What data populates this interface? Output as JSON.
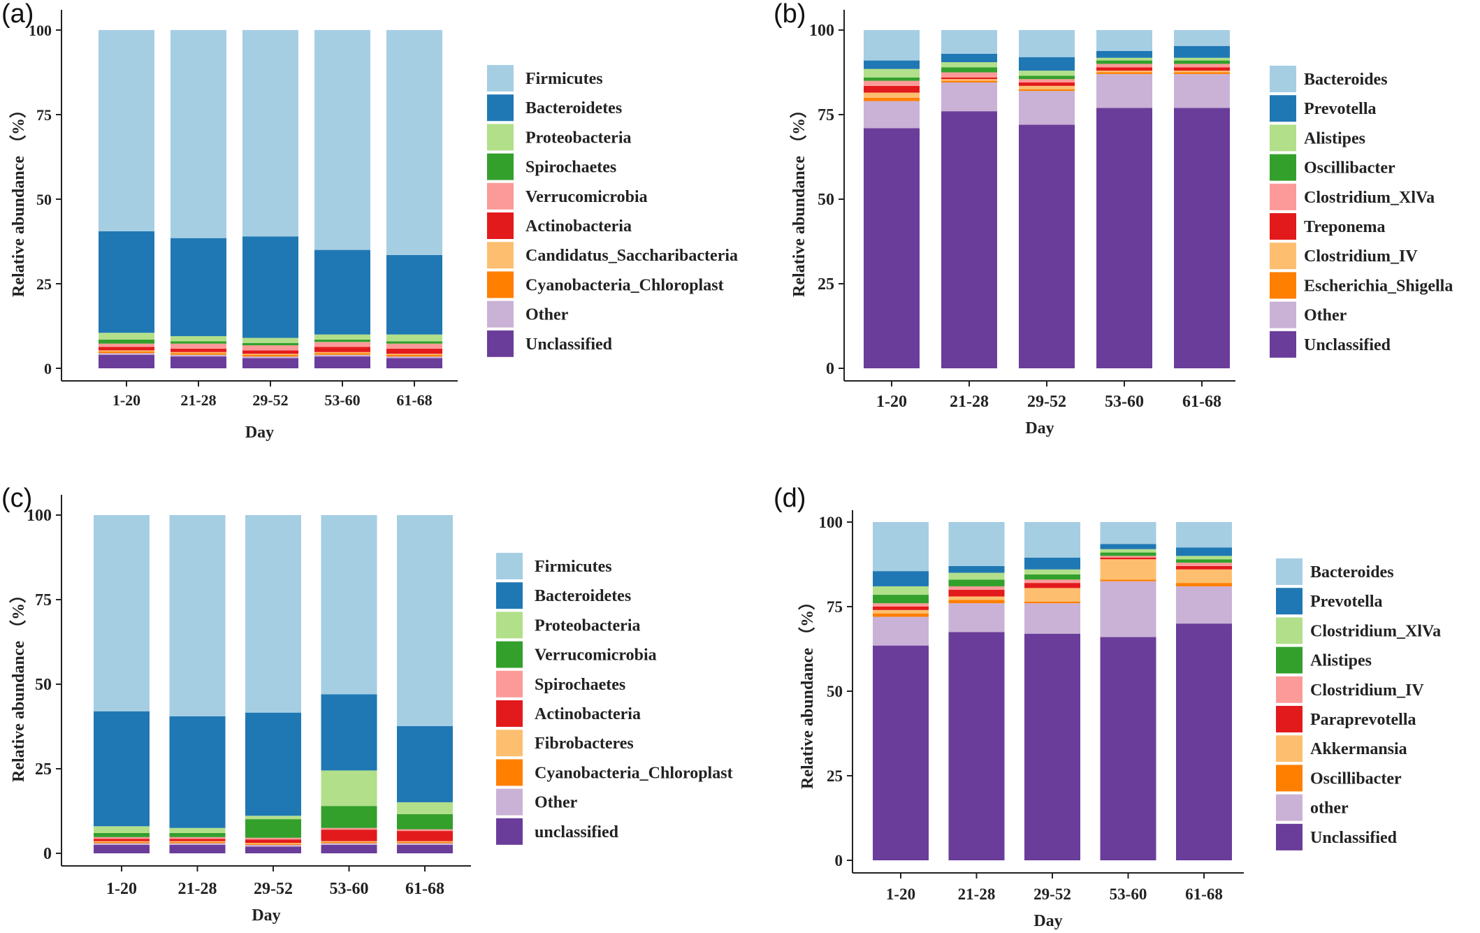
{
  "colors": {
    "light_blue": "#A6CEE3",
    "blue": "#1F78B4",
    "light_green": "#B2DF8A",
    "green": "#33A02C",
    "pink": "#FB9A99",
    "red": "#E31A1C",
    "light_orange": "#FDBF6F",
    "orange": "#FF7F00",
    "lavender": "#CAB2D6",
    "purple": "#6A3D9A"
  },
  "chart_data": [
    {
      "panel": "(a)",
      "type": "bar",
      "stacked": true,
      "xlabel": "Day",
      "ylabel": "Relative abundance （%）",
      "ylim": [
        0,
        100
      ],
      "yticks": [
        "0",
        "25",
        "50",
        "75",
        "100"
      ],
      "categories": [
        "1-20",
        "21-28",
        "29-52",
        "53-60",
        "61-68"
      ],
      "series": [
        {
          "name": "Unclassified",
          "color": "#6A3D9A",
          "values": [
            4.0,
            3.5,
            3.0,
            3.5,
            3.0
          ]
        },
        {
          "name": "Other",
          "color": "#CAB2D6",
          "values": [
            0.5,
            0.5,
            0.5,
            0.5,
            0.5
          ]
        },
        {
          "name": "Cyanobacteria_Chloroplast",
          "color": "#FF7F00",
          "values": [
            0.5,
            0.5,
            0.5,
            0.5,
            0.5
          ]
        },
        {
          "name": "Candidatus_Saccharibacteria",
          "color": "#FDBF6F",
          "values": [
            0.3,
            0.3,
            0.3,
            0.3,
            0.3
          ]
        },
        {
          "name": "Actinobacteria",
          "color": "#E31A1C",
          "values": [
            1.0,
            1.0,
            1.0,
            1.5,
            1.5
          ]
        },
        {
          "name": "Verrucomicrobia",
          "color": "#FB9A99",
          "values": [
            1.0,
            1.5,
            1.5,
            1.5,
            1.5
          ]
        },
        {
          "name": "Spirochaetes",
          "color": "#33A02C",
          "values": [
            1.2,
            0.7,
            0.7,
            0.7,
            0.7
          ]
        },
        {
          "name": "Proteobacteria",
          "color": "#B2DF8A",
          "values": [
            2.0,
            1.5,
            1.5,
            1.5,
            2.0
          ]
        },
        {
          "name": "Bacteroidetes",
          "color": "#1F78B4",
          "values": [
            30.0,
            29.0,
            30.0,
            25.0,
            23.5
          ]
        },
        {
          "name": "Firmicutes",
          "color": "#A6CEE3",
          "values": [
            59.5,
            61.5,
            61.0,
            65.0,
            66.5
          ]
        }
      ],
      "legend": [
        "Firmicutes",
        "Bacteroidetes",
        "Proteobacteria",
        "Spirochaetes",
        "Verrucomicrobia",
        "Actinobacteria",
        "Candidatus_Saccharibacteria",
        "Cyanobacteria_Chloroplast",
        "Other",
        "Unclassified"
      ],
      "legend_position": "right"
    },
    {
      "panel": "(b)",
      "type": "bar",
      "stacked": true,
      "xlabel": "Day",
      "ylabel": "Relative abundance （%）",
      "ylim": [
        0,
        100
      ],
      "yticks": [
        "0",
        "25",
        "50",
        "75",
        "100"
      ],
      "categories": [
        "1-20",
        "21-28",
        "29-52",
        "53-60",
        "61-68"
      ],
      "series": [
        {
          "name": "Unclassified",
          "color": "#6A3D9A",
          "values": [
            71.0,
            76.0,
            72.0,
            77.0,
            77.0
          ]
        },
        {
          "name": "Other",
          "color": "#CAB2D6",
          "values": [
            8.0,
            8.5,
            10.0,
            10.0,
            10.0
          ]
        },
        {
          "name": "Escherichia_Shigella",
          "color": "#FF7F00",
          "values": [
            1.0,
            0.5,
            0.5,
            0.5,
            0.5
          ]
        },
        {
          "name": "Clostridium_IV",
          "color": "#FDBF6F",
          "values": [
            1.5,
            0.5,
            1.0,
            0.5,
            0.5
          ]
        },
        {
          "name": "Treponema",
          "color": "#E31A1C",
          "values": [
            2.0,
            0.5,
            1.0,
            1.0,
            1.0
          ]
        },
        {
          "name": "Clostridium_XlVa",
          "color": "#FB9A99",
          "values": [
            1.5,
            1.5,
            1.0,
            1.0,
            1.0
          ]
        },
        {
          "name": "Oscillibacter",
          "color": "#33A02C",
          "values": [
            1.0,
            1.5,
            1.0,
            1.0,
            1.0
          ]
        },
        {
          "name": "Alistipes",
          "color": "#B2DF8A",
          "values": [
            2.5,
            1.5,
            1.5,
            0.8,
            0.8
          ]
        },
        {
          "name": "Prevotella",
          "color": "#1F78B4",
          "values": [
            2.5,
            2.5,
            4.0,
            2.0,
            3.5
          ]
        },
        {
          "name": "Bacteroides",
          "color": "#A6CEE3",
          "values": [
            9.0,
            7.0,
            8.0,
            6.2,
            4.7
          ]
        }
      ],
      "legend": [
        "Bacteroides",
        "Prevotella",
        "Alistipes",
        "Oscillibacter",
        "Clostridium_XlVa",
        "Treponema",
        "Clostridium_IV",
        "Escherichia_Shigella",
        "Other",
        "Unclassified"
      ],
      "legend_position": "right"
    },
    {
      "panel": "(c)",
      "type": "bar",
      "stacked": true,
      "xlabel": "Day",
      "ylabel": "Relative abundance （%）",
      "ylim": [
        0,
        100
      ],
      "yticks": [
        "0",
        "25",
        "50",
        "75",
        "100"
      ],
      "categories": [
        "1-20",
        "21-28",
        "29-52",
        "53-60",
        "61-68"
      ],
      "series": [
        {
          "name": "unclassified",
          "color": "#6A3D9A",
          "values": [
            2.5,
            2.5,
            2.0,
            2.5,
            2.5
          ]
        },
        {
          "name": "Other",
          "color": "#CAB2D6",
          "values": [
            0.5,
            0.5,
            0.5,
            0.5,
            0.5
          ]
        },
        {
          "name": "Cyanobacteria_Chloroplast",
          "color": "#FF7F00",
          "values": [
            0.3,
            0.3,
            0.3,
            0.3,
            0.3
          ]
        },
        {
          "name": "Fibrobacteres",
          "color": "#FDBF6F",
          "values": [
            0.3,
            0.3,
            0.3,
            0.3,
            0.3
          ]
        },
        {
          "name": "Actinobacteria",
          "color": "#E31A1C",
          "values": [
            0.7,
            0.7,
            1.0,
            3.4,
            3.0
          ]
        },
        {
          "name": "Spirochaetes",
          "color": "#FB9A99",
          "values": [
            0.5,
            0.5,
            0.5,
            0.5,
            0.5
          ]
        },
        {
          "name": "Verrucomicrobia",
          "color": "#33A02C",
          "values": [
            1.2,
            1.2,
            5.5,
            6.5,
            4.5
          ]
        },
        {
          "name": "Proteobacteria",
          "color": "#B2DF8A",
          "values": [
            2.0,
            1.5,
            1.0,
            10.5,
            3.5
          ]
        },
        {
          "name": "Bacteroidetes",
          "color": "#1F78B4",
          "values": [
            34.0,
            33.0,
            30.5,
            22.5,
            22.5
          ]
        },
        {
          "name": "Firmicutes",
          "color": "#A6CEE3",
          "values": [
            58.0,
            59.5,
            58.4,
            53.0,
            62.4
          ]
        }
      ],
      "legend": [
        "Firmicutes",
        "Bacteroidetes",
        "Proteobacteria",
        "Verrucomicrobia",
        "Spirochaetes",
        "Actinobacteria",
        "Fibrobacteres",
        "Cyanobacteria_Chloroplast",
        "Other",
        "unclassified"
      ],
      "legend_position": "right"
    },
    {
      "panel": "(d)",
      "type": "bar",
      "stacked": true,
      "xlabel": "Day",
      "ylabel": "Relative abundance （%）",
      "ylim": [
        0,
        100
      ],
      "yticks": [
        "0",
        "25",
        "50",
        "75",
        "100"
      ],
      "categories": [
        "1-20",
        "21-28",
        "29-52",
        "53-60",
        "61-68"
      ],
      "series": [
        {
          "name": "Unclassified",
          "color": "#6A3D9A",
          "values": [
            63.5,
            67.5,
            67.0,
            66.0,
            70.0
          ]
        },
        {
          "name": "other",
          "color": "#CAB2D6",
          "values": [
            8.5,
            8.5,
            9.0,
            16.5,
            11.0
          ]
        },
        {
          "name": "Oscillibacter",
          "color": "#FF7F00",
          "values": [
            1.0,
            1.0,
            0.5,
            0.5,
            1.0
          ]
        },
        {
          "name": "Akkermansia",
          "color": "#FDBF6F",
          "values": [
            1.0,
            1.0,
            4.0,
            6.0,
            4.0
          ]
        },
        {
          "name": "Paraprevotella",
          "color": "#E31A1C",
          "values": [
            1.0,
            2.0,
            1.5,
            0.5,
            1.0
          ]
        },
        {
          "name": "Clostridium_IV",
          "color": "#FB9A99",
          "values": [
            1.0,
            1.0,
            1.0,
            0.5,
            1.0
          ]
        },
        {
          "name": "Alistipes",
          "color": "#33A02C",
          "values": [
            2.5,
            2.0,
            1.5,
            1.0,
            1.0
          ]
        },
        {
          "name": "Clostridium_XlVa",
          "color": "#B2DF8A",
          "values": [
            2.5,
            2.0,
            1.5,
            1.0,
            1.0
          ]
        },
        {
          "name": "Prevotella",
          "color": "#1F78B4",
          "values": [
            4.5,
            2.0,
            3.5,
            1.5,
            2.5
          ]
        },
        {
          "name": "Bacteroides",
          "color": "#A6CEE3",
          "values": [
            14.5,
            13.0,
            10.5,
            6.5,
            7.5
          ]
        }
      ],
      "legend": [
        "Bacteroides",
        "Prevotella",
        "Clostridium_XlVa",
        "Alistipes",
        "Clostridium_IV",
        "Paraprevotella",
        "Akkermansia",
        "Oscillibacter",
        "other",
        "Unclassified"
      ],
      "legend_position": "right"
    }
  ]
}
